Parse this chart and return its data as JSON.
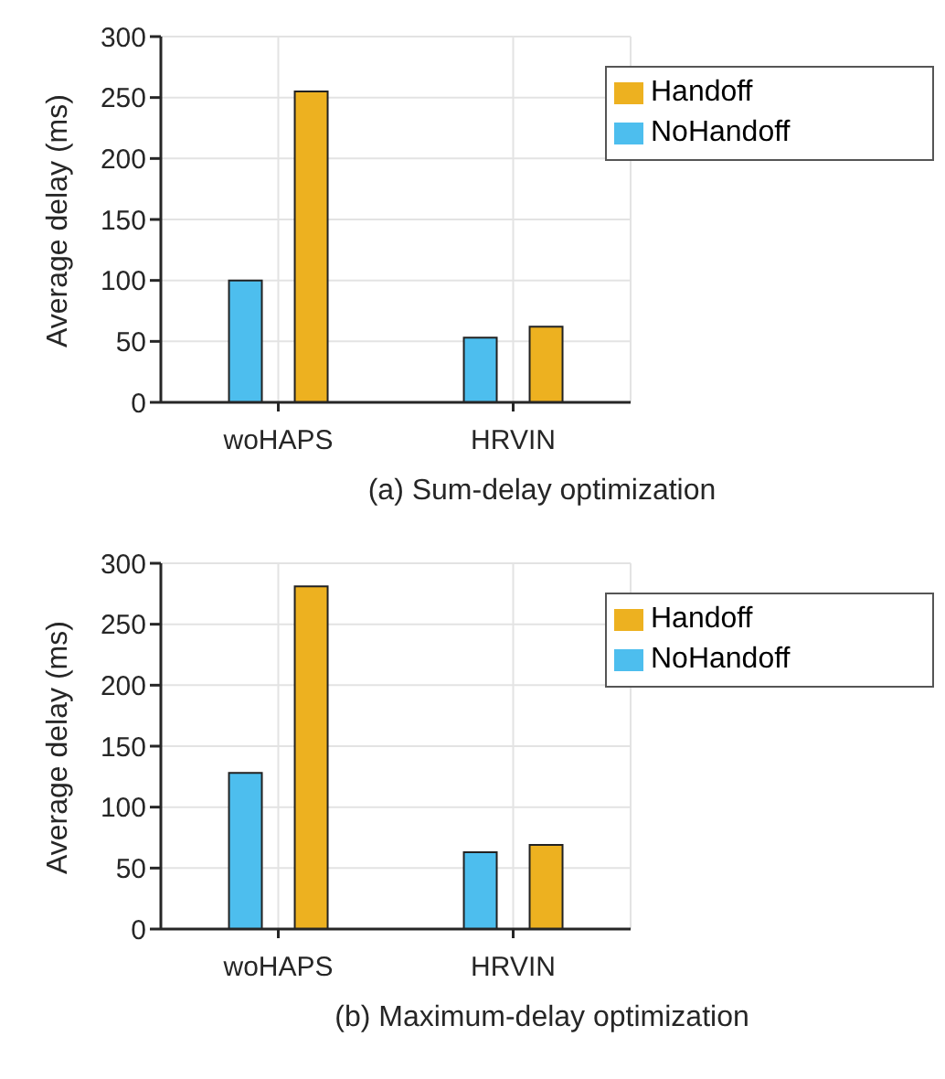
{
  "chart_data": [
    {
      "type": "bar",
      "title": "(a) Sum-delay optimization",
      "ylabel": "Average delay (ms)",
      "categories": [
        "woHAPS",
        "HRVIN"
      ],
      "series": [
        {
          "name": "NoHandoff",
          "color": "#4dbeee",
          "values": [
            100,
            53
          ]
        },
        {
          "name": "Handoff",
          "color": "#edb120",
          "values": [
            255,
            62
          ]
        }
      ],
      "ylim": [
        0,
        300
      ],
      "yticks": [
        0,
        50,
        100,
        150,
        200,
        250,
        300
      ],
      "grid": true,
      "legend": "top right"
    },
    {
      "type": "bar",
      "title": "(b) Maximum-delay optimization",
      "ylabel": "Average delay (ms)",
      "categories": [
        "woHAPS",
        "HRVIN"
      ],
      "series": [
        {
          "name": "NoHandoff",
          "color": "#4dbeee",
          "values": [
            128,
            63
          ]
        },
        {
          "name": "Handoff",
          "color": "#edb120",
          "values": [
            281,
            69
          ]
        }
      ],
      "ylim": [
        0,
        300
      ],
      "yticks": [
        0,
        50,
        100,
        150,
        200,
        250,
        300
      ],
      "grid": true,
      "legend": "top right"
    }
  ]
}
